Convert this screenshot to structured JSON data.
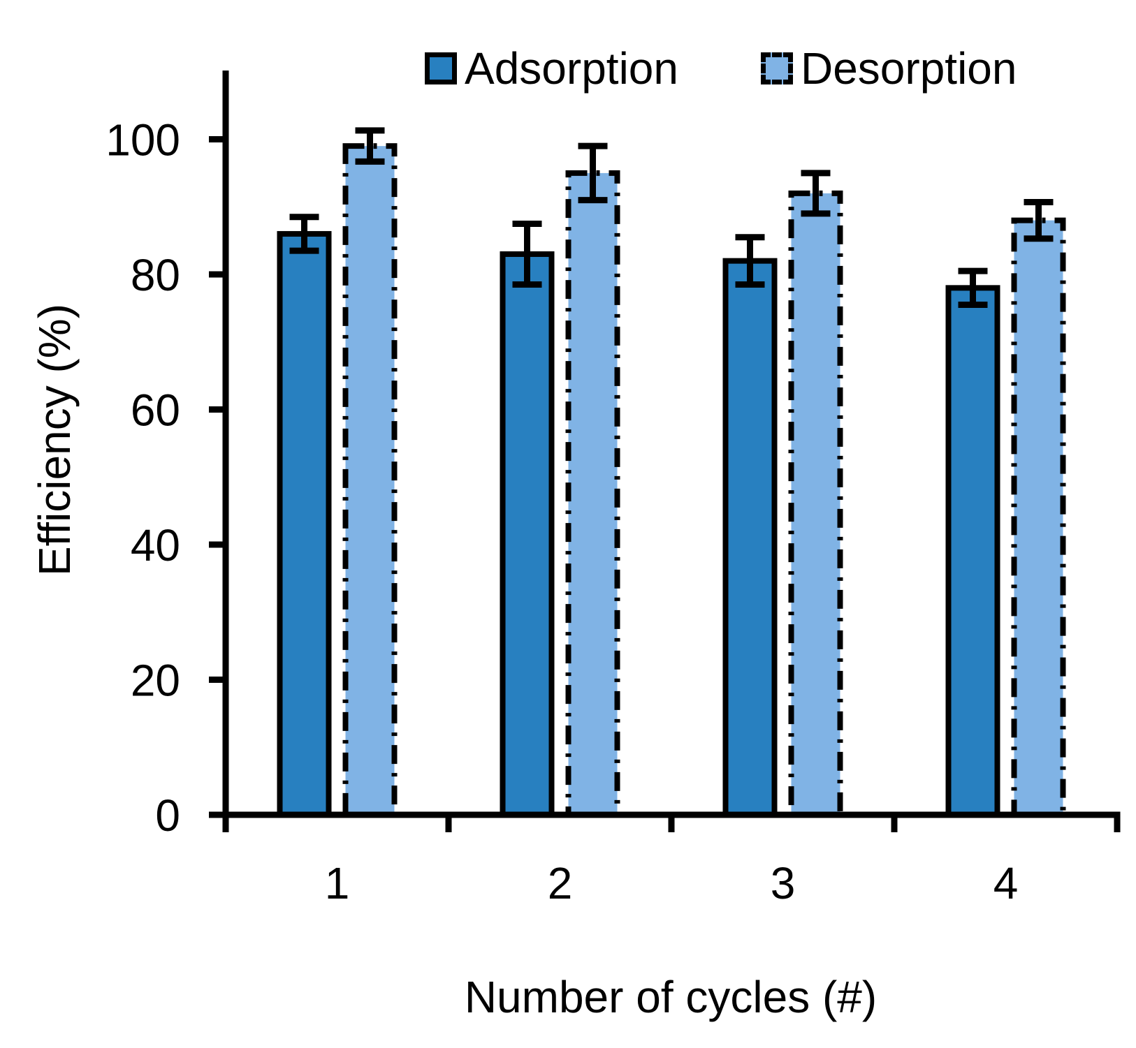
{
  "chart_data": {
    "type": "bar",
    "title": "",
    "xlabel": "Number of cycles (#)",
    "ylabel": "Efficiency (%)",
    "categories": [
      "1",
      "2",
      "3",
      "4"
    ],
    "series": [
      {
        "name": "Adsorption",
        "values": [
          86,
          83,
          82,
          78
        ],
        "errors": [
          2.5,
          4.5,
          3.5,
          2.5
        ],
        "fill": "#2880C0",
        "border_style": "solid"
      },
      {
        "name": "Desorption",
        "values": [
          99,
          95,
          92,
          88
        ],
        "errors": [
          2.3,
          4,
          3,
          2.7
        ],
        "fill": "#80B3E5",
        "border_style": "dash-dot"
      }
    ],
    "y_ticks": [
      0,
      20,
      40,
      60,
      80,
      100
    ],
    "ylim": [
      0,
      110
    ],
    "grid": false,
    "legend_position": "top",
    "axis_color": "#000000",
    "error_bar_color": "#000000",
    "bar_border_color": "#000000"
  }
}
